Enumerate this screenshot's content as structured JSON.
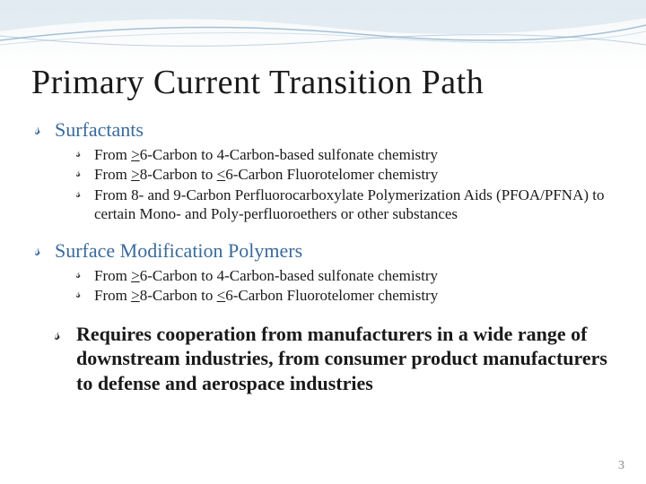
{
  "title": "Primary Current Transition Path",
  "sections": [
    {
      "heading": "Surfactants",
      "heading_color": "#3a6a9a",
      "bullets": [
        "From <span class='ul'>&gt;</span>6-Carbon to 4-Carbon-based sulfonate chemistry",
        "From <span class='ul'>&gt;</span>8-Carbon to <span class='ul'>&lt;</span>6-Carbon Fluorotelomer chemistry",
        "From 8- and 9-Carbon Perfluorocarboxylate Polymerization Aids (PFOA/PFNA) to certain Mono- and Poly-perfluoroethers or other substances"
      ]
    },
    {
      "heading": "Surface Modification Polymers",
      "heading_color": "#3a6a9a",
      "bullets": [
        "From <span class='ul'>&gt;</span>6-Carbon to 4-Carbon-based sulfonate chemistry",
        "From <span class='ul'>&gt;</span>8-Carbon to <span class='ul'>&lt;</span>6-Carbon Fluorotelomer chemistry"
      ]
    }
  ],
  "closing": "Requires cooperation from manufacturers in a wide range of downstream industries, from consumer product manufacturers to defense and aerospace industries",
  "page_number": "3",
  "colors": {
    "title": "#1a1a1a",
    "heading": "#3a6a9a",
    "body": "#1a1a1a",
    "wave1": "#b8cfe0",
    "wave2": "#7fa8c9",
    "wave3": "#d4e2ed"
  }
}
